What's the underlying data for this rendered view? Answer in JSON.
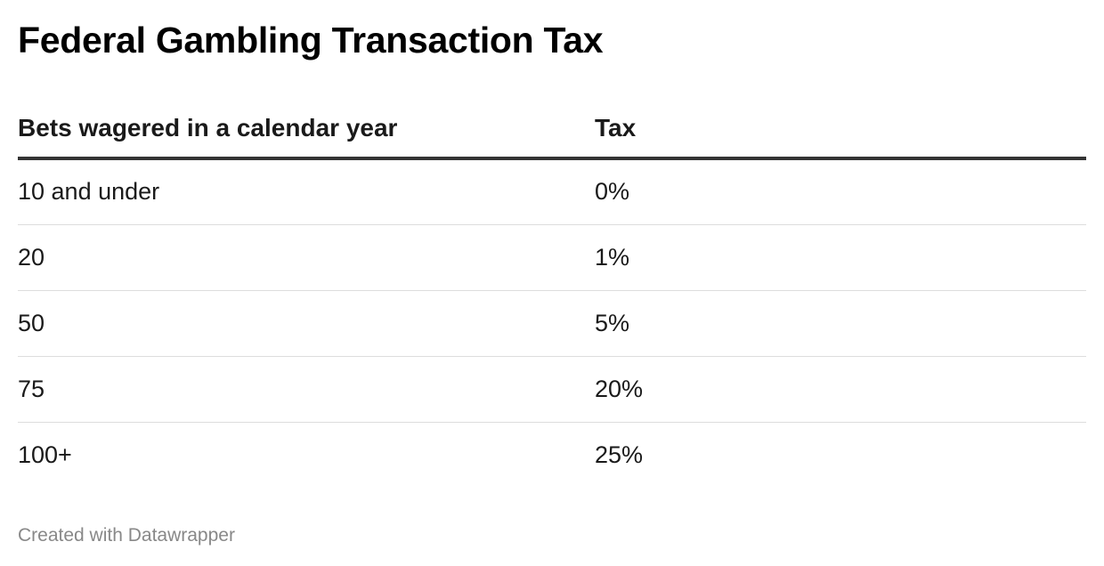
{
  "title": "Federal Gambling Transaction Tax",
  "footer": "Created with Datawrapper",
  "colors": {
    "text": "#1a1a1a",
    "header_rule": "#333333",
    "row_rule": "#dddddd",
    "footer": "#888888"
  },
  "chart_data": {
    "type": "table",
    "title": "Federal Gambling Transaction Tax",
    "columns": [
      "Bets wagered in a calendar year",
      "Tax"
    ],
    "rows": [
      [
        "10 and under",
        "0%"
      ],
      [
        "20",
        "1%"
      ],
      [
        "50",
        "5%"
      ],
      [
        "75",
        "20%"
      ],
      [
        "100+",
        "25%"
      ]
    ]
  }
}
